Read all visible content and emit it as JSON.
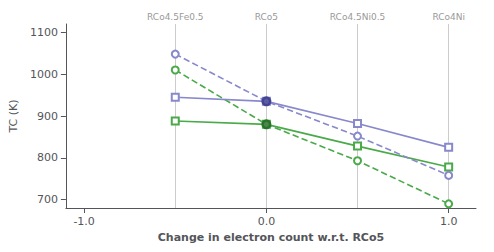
{
  "chart_data": {
    "type": "line",
    "title": "",
    "xlabel": "Change in electron count w.r.t. RCo5",
    "ylabel": "TC (K)",
    "xlim": [
      -1.1,
      1.15
    ],
    "ylim": [
      680,
      1120
    ],
    "xticks": [
      {
        "value": -1.0,
        "label": "-1.0"
      },
      {
        "value": 0.0,
        "label": "0.0"
      },
      {
        "value": 1.0,
        "label": "1.0"
      }
    ],
    "yticks": [
      700,
      800,
      900,
      1000,
      1100
    ],
    "grid": false,
    "vlines": [
      {
        "x": -0.5,
        "label": "RCo4.5Fe0.5",
        "color": "#cccccc"
      },
      {
        "x": 0.0,
        "label": "RCo5",
        "color": "#cccccc"
      },
      {
        "x": 0.5,
        "label": "RCo4.5Ni0.5",
        "color": "#cccccc"
      },
      {
        "x": 1.0,
        "label": "RCo4Ni",
        "color": "#cccccc"
      }
    ],
    "series": [
      {
        "type": "line",
        "color": "#4aaa4a",
        "marker": "open_square",
        "line_style": "solid",
        "x": [
          -0.5,
          0.0,
          0.5,
          1.0
        ],
        "values": [
          888,
          880,
          828,
          778
        ]
      },
      {
        "type": "line",
        "color": "#4aaa4a",
        "marker": "open_circle",
        "line_style": "dashed",
        "x": [
          -0.5,
          0.0,
          0.5,
          1.0
        ],
        "values": [
          1010,
          880,
          793,
          690
        ]
      },
      {
        "type": "line",
        "color": "#8888cc",
        "marker": "open_square",
        "line_style": "solid",
        "x": [
          -0.5,
          0.0,
          0.5,
          1.0
        ],
        "values": [
          945,
          935,
          882,
          825
        ]
      },
      {
        "type": "line",
        "color": "#8888cc",
        "marker": "open_circle",
        "line_style": "dashed",
        "x": [
          -0.5,
          0.0,
          0.5,
          1.0
        ],
        "values": [
          1048,
          935,
          852,
          758
        ]
      },
      {
        "type": "scatter",
        "color": "#226622",
        "marker": "circle",
        "x": [
          0.0
        ],
        "values": [
          880
        ]
      },
      {
        "type": "scatter",
        "color": "#333388",
        "marker": "circle",
        "x": [
          0.0
        ],
        "values": [
          935
        ]
      }
    ]
  }
}
